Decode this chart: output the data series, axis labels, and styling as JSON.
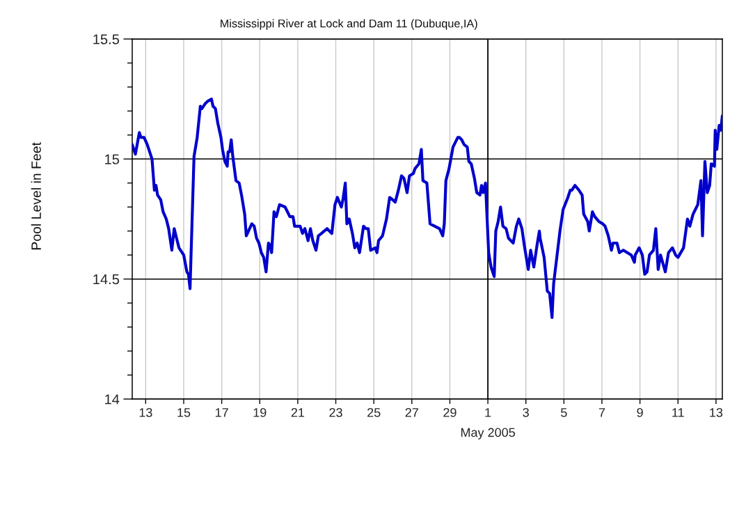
{
  "chart_data": {
    "type": "line",
    "title": "Mississippi River at Lock and Dam 11 (Dubuque,IA)",
    "ylabel": "Pool Level in Feet",
    "x": [
      "2005-04-12T07:00",
      "2005-04-12T11:00",
      "2005-04-12T16:00",
      "2005-04-12T18:00",
      "2005-04-12T22:00",
      "2005-04-13T02:00",
      "2005-04-13T08:00",
      "2005-04-13T11:00",
      "2005-04-13T13:00",
      "2005-04-13T15:00",
      "2005-04-13T19:00",
      "2005-04-13T22:00",
      "2005-04-14T02:00",
      "2005-04-14T05:00",
      "2005-04-14T09:00",
      "2005-04-14T12:00",
      "2005-04-14T18:00",
      "2005-04-15T00:00",
      "2005-04-15T04:00",
      "2005-04-15T06:00",
      "2005-04-15T08:00",
      "2005-04-15T11:00",
      "2005-04-15T13:00",
      "2005-04-15T17:00",
      "2005-04-15T21:00",
      "2005-04-15T23:00",
      "2005-04-16T03:00",
      "2005-04-16T06:00",
      "2005-04-16T11:00",
      "2005-04-16T13:00",
      "2005-04-16T16:00",
      "2005-04-16T19:00",
      "2005-04-16T23:00",
      "2005-04-17T01:00",
      "2005-04-17T04:00",
      "2005-04-17T07:00",
      "2005-04-17T08:00",
      "2005-04-17T10:00",
      "2005-04-17T12:00",
      "2005-04-17T14:00",
      "2005-04-17T18:00",
      "2005-04-17T22:00",
      "2005-04-18T01:00",
      "2005-04-18T05:00",
      "2005-04-18T07:00",
      "2005-04-18T14:00",
      "2005-04-18T17:00",
      "2005-04-18T20:00",
      "2005-04-18T23:00",
      "2005-04-19T02:00",
      "2005-04-19T05:00",
      "2005-04-19T08:00",
      "2005-04-19T11:00",
      "2005-04-19T13:00",
      "2005-04-19T15:00",
      "2005-04-19T18:00",
      "2005-04-19T21:00",
      "2005-04-20T01:00",
      "2005-04-20T08:00",
      "2005-04-20T14:00",
      "2005-04-20T18:00",
      "2005-04-20T20:00",
      "2005-04-21T03:00",
      "2005-04-21T06:00",
      "2005-04-21T09:00",
      "2005-04-21T13:00",
      "2005-04-21T16:00",
      "2005-04-21T19:00",
      "2005-04-21T23:00",
      "2005-04-22T02:00",
      "2005-04-22T06:00",
      "2005-04-22T13:00",
      "2005-04-22T19:00",
      "2005-04-22T23:00",
      "2005-04-23T02:00",
      "2005-04-23T07:00",
      "2005-04-23T09:00",
      "2005-04-23T12:00",
      "2005-04-23T14:00",
      "2005-04-23T17:00",
      "2005-04-23T21:00",
      "2005-04-24T00:00",
      "2005-04-24T03:00",
      "2005-04-24T06:00",
      "2005-04-24T11:00",
      "2005-04-24T14:00",
      "2005-04-24T17:00",
      "2005-04-24T20:00",
      "2005-04-25T02:00",
      "2005-04-25T04:00",
      "2005-04-25T06:00",
      "2005-04-25T11:00",
      "2005-04-25T16:00",
      "2005-04-25T20:00",
      "2005-04-26T00:00",
      "2005-04-26T03:00",
      "2005-04-26T07:00",
      "2005-04-26T11:00",
      "2005-04-26T14:00",
      "2005-04-26T18:00",
      "2005-04-26T21:00",
      "2005-04-27T02:00",
      "2005-04-27T04:00",
      "2005-04-27T09:00",
      "2005-04-27T12:00",
      "2005-04-27T14:00",
      "2005-04-27T19:00",
      "2005-04-27T23:00",
      "2005-04-28T05:00",
      "2005-04-28T11:00",
      "2005-04-28T15:00",
      "2005-04-28T17:00",
      "2005-04-28T19:00",
      "2005-04-28T23:00",
      "2005-04-29T04:00",
      "2005-04-29T10:00",
      "2005-04-29T12:00",
      "2005-04-29T15:00",
      "2005-04-29T18:00",
      "2005-04-29T22:00",
      "2005-04-30T00:00",
      "2005-04-30T03:00",
      "2005-04-30T07:00",
      "2005-04-30T10:00",
      "2005-04-30T14:00",
      "2005-04-30T16:00",
      "2005-04-30T18:00",
      "2005-04-30T21:00",
      "2005-05-01T01:00",
      "2005-05-01T04:00",
      "2005-05-01T08:00",
      "2005-05-01T10:00",
      "2005-05-01T13:00",
      "2005-05-01T16:00",
      "2005-05-01T19:00",
      "2005-05-01T23:00",
      "2005-05-02T02:00",
      "2005-05-02T05:00",
      "2005-05-02T08:00",
      "2005-05-02T12:00",
      "2005-05-02T15:00",
      "2005-05-02T19:00",
      "2005-05-02T22:00",
      "2005-05-03T03:00",
      "2005-05-03T06:00",
      "2005-05-03T10:00",
      "2005-05-03T14:00",
      "2005-05-03T17:00",
      "2005-05-03T18:00",
      "2005-05-03T23:00",
      "2005-05-04T03:00",
      "2005-05-04T06:00",
      "2005-05-04T09:00",
      "2005-05-04T11:00",
      "2005-05-04T15:00",
      "2005-05-04T19:00",
      "2005-05-04T23:00",
      "2005-05-05T05:00",
      "2005-05-05T08:00",
      "2005-05-05T10:00",
      "2005-05-05T14:00",
      "2005-05-05T19:00",
      "2005-05-05T23:00",
      "2005-05-06T01:00",
      "2005-05-06T06:00",
      "2005-05-06T08:00",
      "2005-05-06T12:00",
      "2005-05-06T15:00",
      "2005-05-06T20:00",
      "2005-05-07T01:00",
      "2005-05-07T04:00",
      "2005-05-07T08:00",
      "2005-05-07T12:00",
      "2005-05-07T14:00",
      "2005-05-07T19:00",
      "2005-05-07T22:00",
      "2005-05-08T03:00",
      "2005-05-08T08:00",
      "2005-05-08T13:00",
      "2005-05-08T17:00",
      "2005-05-08T18:00",
      "2005-05-08T23:00",
      "2005-05-09T03:00",
      "2005-05-09T06:00",
      "2005-05-09T09:00",
      "2005-05-09T12:00",
      "2005-05-09T17:00",
      "2005-05-09T20:00",
      "2005-05-09T23:00",
      "2005-05-10T02:00",
      "2005-05-10T08:00",
      "2005-05-10T12:00",
      "2005-05-10T17:00",
      "2005-05-10T21:00",
      "2005-05-11T00:00",
      "2005-05-11T07:00",
      "2005-05-11T12:00",
      "2005-05-11T15:00",
      "2005-05-11T19:00",
      "2005-05-11T22:00",
      "2005-05-12T01:00",
      "2005-05-12T05:00",
      "2005-05-12T07:00",
      "2005-05-12T10:00",
      "2005-05-12T13:00",
      "2005-05-12T16:00",
      "2005-05-12T18:00",
      "2005-05-12T22:00",
      "2005-05-12T23:00",
      "2005-05-13T01:00",
      "2005-05-13T04:00",
      "2005-05-13T06:00",
      "2005-05-13T08:00"
    ],
    "series": [
      {
        "color": "#0000cc",
        "values": [
          15.06,
          15.02,
          15.11,
          15.09,
          15.09,
          15.06,
          15.0,
          14.87,
          14.89,
          14.85,
          14.83,
          14.78,
          14.75,
          14.71,
          14.62,
          14.71,
          14.63,
          14.6,
          14.53,
          14.52,
          14.46,
          14.79,
          15.01,
          15.09,
          15.22,
          15.21,
          15.23,
          15.24,
          15.25,
          15.22,
          15.21,
          15.15,
          15.09,
          15.04,
          14.99,
          14.97,
          15.03,
          15.03,
          15.08,
          15.01,
          14.91,
          14.9,
          14.85,
          14.77,
          14.68,
          14.73,
          14.72,
          14.67,
          14.65,
          14.61,
          14.59,
          14.53,
          14.65,
          14.64,
          14.61,
          14.78,
          14.76,
          14.81,
          14.8,
          14.76,
          14.76,
          14.72,
          14.72,
          14.69,
          14.71,
          14.66,
          14.71,
          14.66,
          14.62,
          14.68,
          14.69,
          14.71,
          14.69,
          14.81,
          14.84,
          14.8,
          14.83,
          14.9,
          14.73,
          14.75,
          14.69,
          14.63,
          14.65,
          14.61,
          14.72,
          14.71,
          14.71,
          14.62,
          14.63,
          14.61,
          14.66,
          14.68,
          14.75,
          14.84,
          14.83,
          14.82,
          14.87,
          14.93,
          14.92,
          14.86,
          14.93,
          14.94,
          14.96,
          14.98,
          15.04,
          14.91,
          14.9,
          14.73,
          14.72,
          14.71,
          14.68,
          14.73,
          14.91,
          14.96,
          15.05,
          15.09,
          15.09,
          15.08,
          15.06,
          15.05,
          14.99,
          14.98,
          14.92,
          14.86,
          14.85,
          14.89,
          14.86,
          14.9,
          14.61,
          14.55,
          14.51,
          14.7,
          14.74,
          14.8,
          14.72,
          14.71,
          14.67,
          14.66,
          14.65,
          14.72,
          14.75,
          14.71,
          14.64,
          14.54,
          14.62,
          14.55,
          14.64,
          14.7,
          14.67,
          14.59,
          14.45,
          14.44,
          14.34,
          14.48,
          14.59,
          14.7,
          14.79,
          14.84,
          14.87,
          14.87,
          14.89,
          14.87,
          14.85,
          14.77,
          14.74,
          14.7,
          14.78,
          14.76,
          14.74,
          14.73,
          14.72,
          14.68,
          14.62,
          14.65,
          14.65,
          14.61,
          14.62,
          14.61,
          14.6,
          14.57,
          14.6,
          14.63,
          14.6,
          14.52,
          14.53,
          14.6,
          14.62,
          14.71,
          14.54,
          14.6,
          14.53,
          14.61,
          14.63,
          14.6,
          14.59,
          14.63,
          14.75,
          14.72,
          14.77,
          14.79,
          14.81,
          14.91,
          14.68,
          14.99,
          14.86,
          14.89,
          14.98,
          14.97,
          15.12,
          15.04,
          15.14,
          15.12,
          15.18
        ]
      }
    ],
    "xlim": [
      "2005-04-12T07:00",
      "2005-05-13T08:00"
    ],
    "xticks": [
      {
        "value": "2005-04-13",
        "label": "13"
      },
      {
        "value": "2005-04-15",
        "label": "15"
      },
      {
        "value": "2005-04-17",
        "label": "17"
      },
      {
        "value": "2005-04-19",
        "label": "19"
      },
      {
        "value": "2005-04-21",
        "label": "21"
      },
      {
        "value": "2005-04-23",
        "label": "23"
      },
      {
        "value": "2005-04-25",
        "label": "25"
      },
      {
        "value": "2005-04-27",
        "label": "27"
      },
      {
        "value": "2005-04-29",
        "label": "29"
      },
      {
        "value": "2005-05-01",
        "label": "1\nMay 2005"
      },
      {
        "value": "2005-05-03",
        "label": "3"
      },
      {
        "value": "2005-05-05",
        "label": "5"
      },
      {
        "value": "2005-05-07",
        "label": "7"
      },
      {
        "value": "2005-05-09",
        "label": "9"
      },
      {
        "value": "2005-05-11",
        "label": "11"
      },
      {
        "value": "2005-05-13",
        "label": "13"
      }
    ],
    "ylim": [
      14,
      15.5
    ],
    "yticks": [
      14,
      {
        "value": 14.1,
        "label": null
      },
      {
        "value": 14.2,
        "label": null
      },
      {
        "value": 14.3,
        "label": null
      },
      {
        "value": 14.4,
        "label": null
      },
      14.5,
      {
        "value": 14.6,
        "label": null
      },
      {
        "value": 14.7,
        "label": null
      },
      {
        "value": 14.8,
        "label": null
      },
      {
        "value": 14.9,
        "label": null
      },
      15,
      {
        "value": 15.1,
        "label": null
      },
      {
        "value": 15.2,
        "label": null
      },
      {
        "value": 15.3,
        "label": null
      },
      {
        "value": 15.4,
        "label": null
      },
      15.5
    ],
    "ref_lines": [
      {
        "axis": "x",
        "value": "2005-05-01",
        "color": "#000000"
      }
    ],
    "grid": true,
    "marker": "none",
    "line_style": "solid"
  }
}
